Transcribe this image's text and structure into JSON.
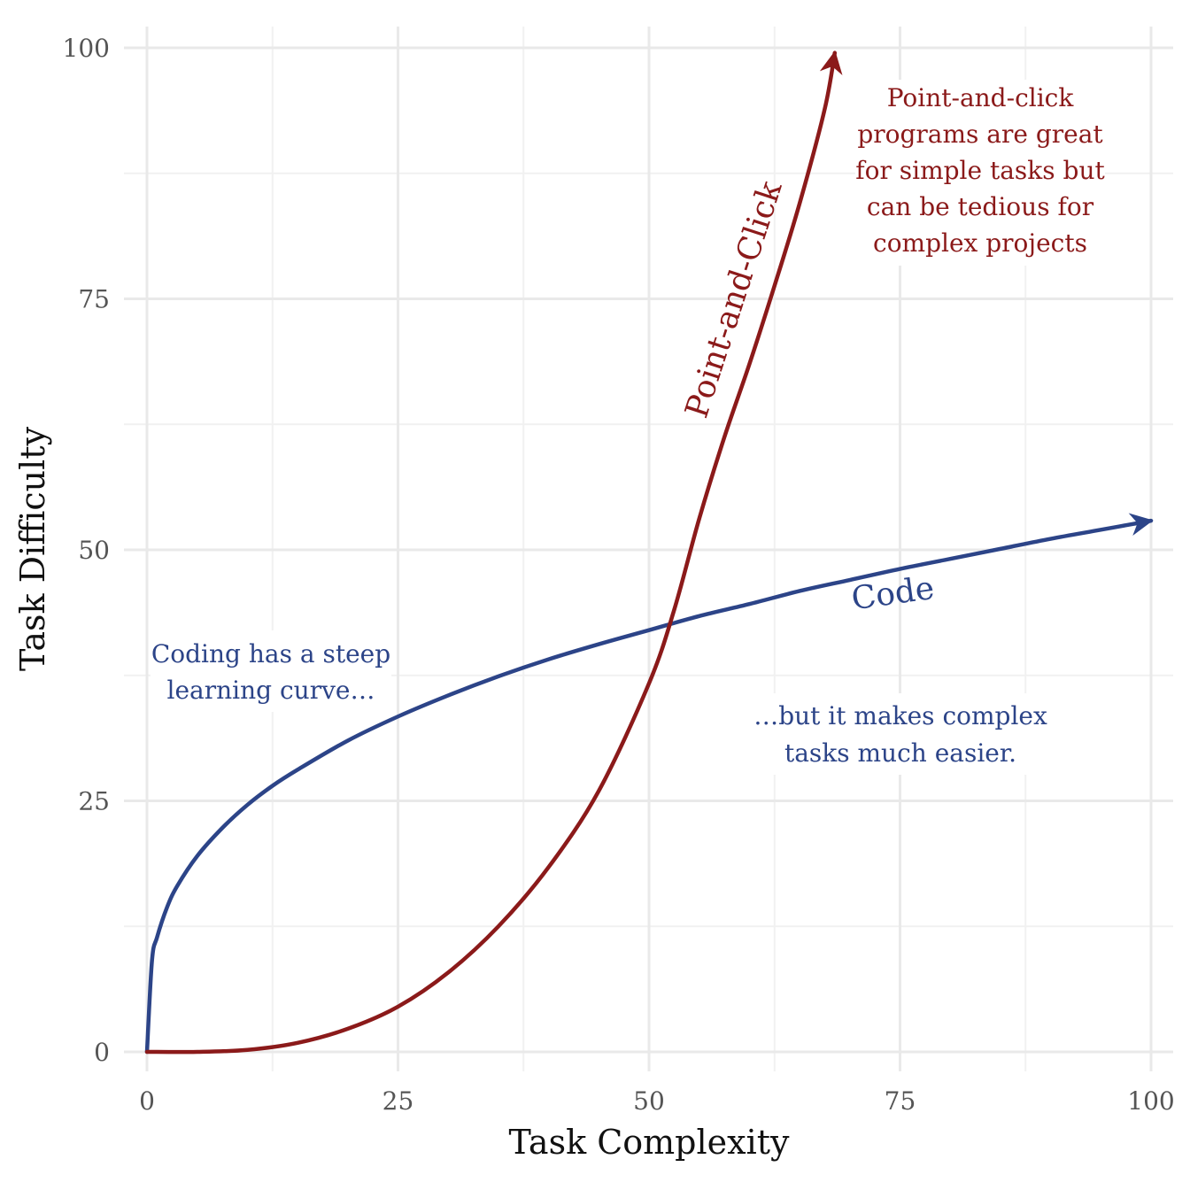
{
  "chart_data": {
    "type": "line",
    "xlabel": "Task Complexity",
    "ylabel": "Task Difficulty",
    "xlim": [
      0,
      100
    ],
    "ylim": [
      0,
      100
    ],
    "x_ticks": [
      "0",
      "25",
      "50",
      "75",
      "100"
    ],
    "y_ticks": [
      "0",
      "25",
      "50",
      "75",
      "100"
    ],
    "grid": true,
    "series": [
      {
        "name": "Code",
        "color": "#2c4488",
        "arrow": "end",
        "x": [
          0,
          0.5,
          1,
          2,
          3,
          5,
          7.5,
          10,
          12.5,
          15,
          20,
          25,
          30,
          35,
          40,
          45,
          50,
          55,
          60,
          65,
          70,
          75,
          80,
          85,
          90,
          95,
          100
        ],
        "y": [
          0,
          9.1,
          11.4,
          14.4,
          16.5,
          19.5,
          22.3,
          24.6,
          26.5,
          28.1,
          31.0,
          33.4,
          35.5,
          37.4,
          39.1,
          40.6,
          42.0,
          43.4,
          44.6,
          45.9,
          47.0,
          48.1,
          49.1,
          50.1,
          51.1,
          52.0,
          52.9
        ]
      },
      {
        "name": "Point-and-Click",
        "color": "#8b1a1a",
        "arrow": "end",
        "x": [
          0,
          5,
          10,
          15,
          20,
          25,
          30,
          35,
          40,
          45,
          50,
          52.5,
          55,
          57.5,
          60,
          62.5,
          65,
          67.5,
          68.5
        ],
        "y": [
          0,
          0.0,
          0.2,
          0.9,
          2.3,
          4.5,
          7.9,
          12.5,
          18.4,
          26.0,
          36.7,
          44.0,
          53.1,
          61.2,
          68.5,
          76.3,
          84.5,
          93.9,
          99.5
        ]
      }
    ],
    "annotations": {
      "code_label": "Code",
      "pc_label": "Point-and-Click",
      "steep_lines": [
        "Coding has a steep",
        "learning curve…"
      ],
      "easier_lines": [
        "…but it makes complex",
        "tasks much easier."
      ],
      "pc_lines": [
        "Point-and-click",
        "programs are great",
        "for simple tasks but",
        "can be tedious for",
        "complex projects"
      ]
    }
  }
}
